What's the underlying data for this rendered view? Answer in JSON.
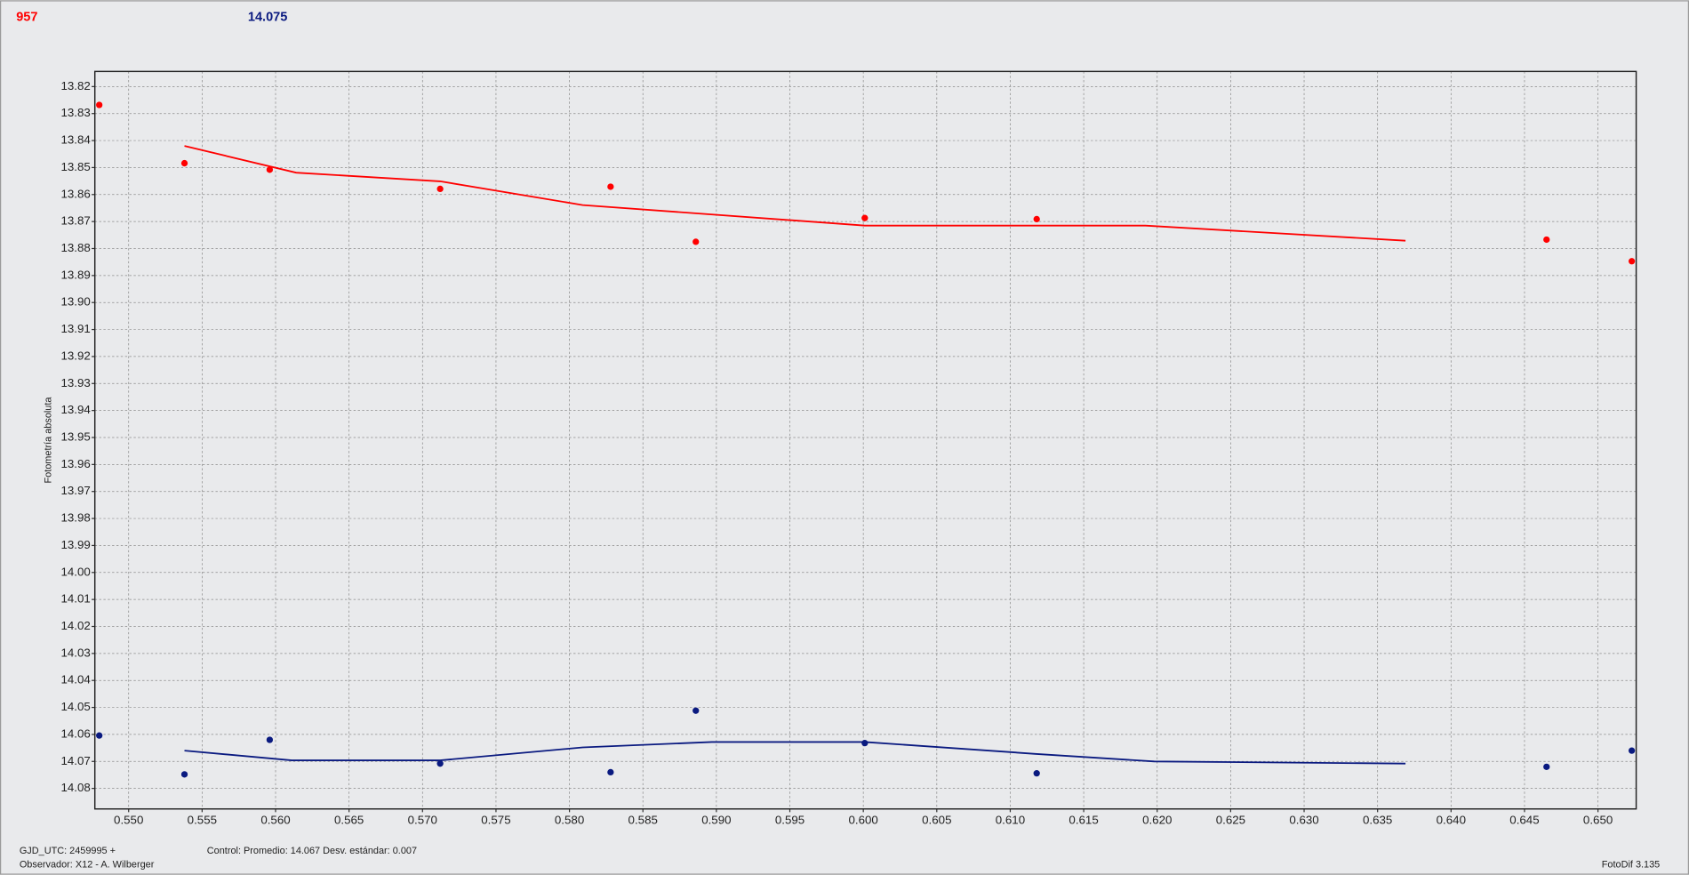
{
  "chart_data": {
    "type": "scatter",
    "y_label": "Fotometría absoluta",
    "series": [
      {
        "name": "957",
        "color": "#ff0000",
        "x": [
          0.548,
          0.5538,
          0.5596,
          0.5712,
          0.5828,
          0.5886,
          0.6001,
          0.6118,
          0.6465,
          0.6523
        ],
        "values": [
          13.8268,
          13.8484,
          13.8508,
          13.8579,
          13.8571,
          13.8775,
          13.8687,
          13.8691,
          13.8767,
          13.8847
        ],
        "fit_x": [
          0.5538,
          0.5614,
          0.5712,
          0.5809,
          0.6001,
          0.6192,
          0.6369
        ],
        "fit_values": [
          13.842,
          13.8519,
          13.8551,
          13.8639,
          13.8715,
          13.8715,
          13.8771
        ]
      },
      {
        "name": "14.075",
        "color": "#0a1a80",
        "x": [
          0.548,
          0.5538,
          0.5596,
          0.5712,
          0.5828,
          0.5886,
          0.6001,
          0.6118,
          0.6465,
          0.6523
        ],
        "values": [
          14.0604,
          14.0748,
          14.062,
          14.0708,
          14.074,
          14.0512,
          14.0632,
          14.0744,
          14.072,
          14.066
        ],
        "fit_x": [
          0.5538,
          0.5611,
          0.5712,
          0.5809,
          0.5897,
          0.6001,
          0.6117,
          0.6198,
          0.6369
        ],
        "fit_values": [
          14.066,
          14.0696,
          14.0696,
          14.0648,
          14.0628,
          14.0628,
          14.0672,
          14.07,
          14.0708
        ]
      }
    ],
    "xlim": [
      0.5477,
      0.6526
    ],
    "ylim": [
      14.0876,
      13.8144
    ],
    "xticks": [
      {
        "value": 0.55,
        "label": "0.550"
      },
      0.555,
      {
        "value": 0.56,
        "label": "0.560"
      },
      0.565,
      {
        "value": 0.57,
        "label": "0.570"
      },
      0.575,
      {
        "value": 0.58,
        "label": "0.580"
      },
      0.585,
      {
        "value": 0.59,
        "label": "0.590"
      },
      0.595,
      {
        "value": 0.6,
        "label": "0.600"
      },
      0.605,
      {
        "value": 0.61,
        "label": "0.610"
      },
      0.615,
      {
        "value": 0.62,
        "label": "0.620"
      },
      0.625,
      {
        "value": 0.63,
        "label": "0.630"
      },
      0.635,
      {
        "value": 0.64,
        "label": "0.640"
      },
      0.645,
      {
        "value": 0.65,
        "label": "0.650"
      }
    ],
    "yticks": [
      13.82,
      13.83,
      13.84,
      13.85,
      13.86,
      13.87,
      13.88,
      13.89,
      {
        "value": 13.9,
        "label": "13.90"
      },
      13.91,
      13.92,
      13.93,
      13.94,
      13.95,
      13.96,
      13.97,
      13.98,
      13.99,
      {
        "value": 14.0,
        "label": "14.00"
      },
      14.01,
      14.02,
      14.03,
      14.04,
      14.05,
      14.06,
      14.07,
      14.08
    ],
    "grid": true,
    "footer": {
      "gjd": "GJD_UTC: 2459995 +",
      "observer": "Observador: X12 - A. Wilberger",
      "control": "Control: Promedio: 14.067  Desv. estándar: 0.007",
      "version": "FotoDif 3.135"
    }
  }
}
